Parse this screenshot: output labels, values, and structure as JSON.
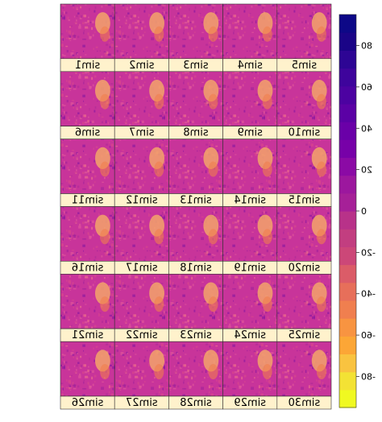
{
  "chart_data": {
    "type": "heatmap",
    "rendering": "image appears horizontally mirrored (all text reads reversed)",
    "panels": [
      "sim1",
      "sim2",
      "sim3",
      "sim4",
      "sim5",
      "sim6",
      "sim7",
      "sim8",
      "sim9",
      "sim10",
      "sim11",
      "sim12",
      "sim13",
      "sim14",
      "sim15",
      "sim16",
      "sim17",
      "sim18",
      "sim19",
      "sim20",
      "sim21",
      "sim22",
      "sim23",
      "sim24",
      "sim25",
      "sim26",
      "sim27",
      "sim28",
      "sim29",
      "sim30"
    ],
    "layout": {
      "rows": 6,
      "cols": 5,
      "strip": "bottom"
    },
    "colorbar": {
      "ticks": [
        "-80",
        "-60",
        "-40",
        "-20",
        "0",
        "20",
        "40",
        "60",
        "80"
      ],
      "tick_values": [
        -80,
        -60,
        -40,
        -20,
        0,
        20,
        40,
        60,
        80
      ],
      "range": [
        -95,
        95
      ],
      "colors": [
        "#f0f921",
        "#f3e234",
        "#f9c340",
        "#fca636",
        "#f89441",
        "#f07f4f",
        "#e76f5a",
        "#db5c68",
        "#cc4778",
        "#c23e80",
        "#b83289",
        "#a62098",
        "#9c179e",
        "#8b0aa5",
        "#7701a8",
        "#6a00a8",
        "#5b01a5",
        "#4c02a1",
        "#3e049c",
        "#2d0594",
        "#1a0487",
        "#0d0887"
      ]
    },
    "strip_color": "#fff2cc",
    "panel_base_color": "#c8349a"
  }
}
